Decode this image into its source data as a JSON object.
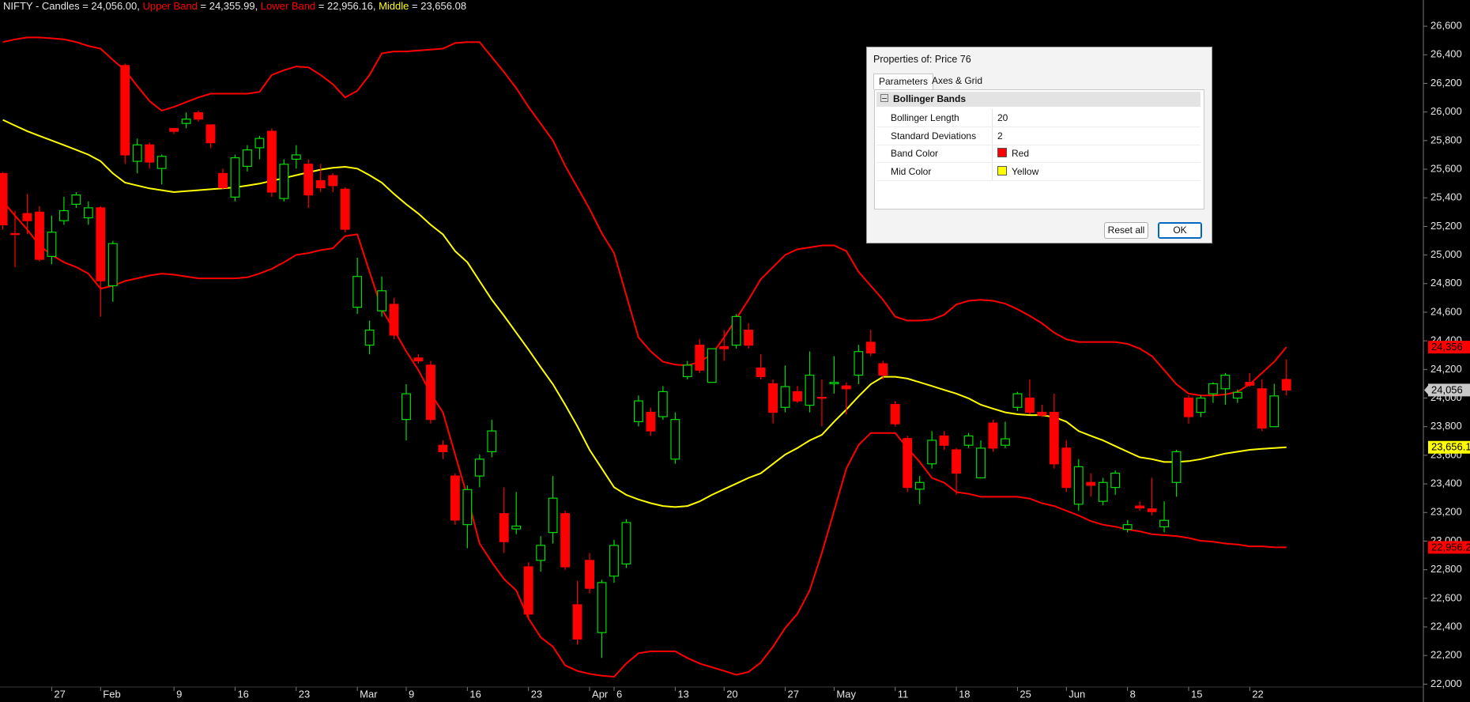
{
  "chart_data": {
    "type": "candlestick",
    "symbol": "NIFTY",
    "symbol_sep": " - ",
    "equals": " = ",
    "comma": ", ",
    "ylim": [
      21980,
      26783
    ],
    "yticks": [
      {
        "value": 22000,
        "label": "22,000"
      },
      {
        "value": 22200,
        "label": "22,200"
      },
      {
        "value": 22400,
        "label": "22,400"
      },
      {
        "value": 22600,
        "label": "22,600"
      },
      {
        "value": 22800,
        "label": "22,800"
      },
      {
        "value": 23000,
        "label": "23,000"
      },
      {
        "value": 23200,
        "label": "23,200"
      },
      {
        "value": 23400,
        "label": "23,400"
      },
      {
        "value": 23600,
        "label": "23,600"
      },
      {
        "value": 23800,
        "label": "23,800"
      },
      {
        "value": 24000,
        "label": "24,000"
      },
      {
        "value": 24200,
        "label": "24,200"
      },
      {
        "value": 24400,
        "label": "24,400"
      },
      {
        "value": 24600,
        "label": "24,600"
      },
      {
        "value": 24800,
        "label": "24,800"
      },
      {
        "value": 25000,
        "label": "25,000"
      },
      {
        "value": 25200,
        "label": "25,200"
      },
      {
        "value": 25400,
        "label": "25,400"
      },
      {
        "value": 25600,
        "label": "25,600"
      },
      {
        "value": 25800,
        "label": "25,800"
      },
      {
        "value": 26000,
        "label": "26,000"
      },
      {
        "value": 26200,
        "label": "26,200"
      },
      {
        "value": 26400,
        "label": "26,400"
      },
      {
        "value": 26600,
        "label": "26,600"
      }
    ],
    "categories": [
      null,
      null,
      null,
      null,
      "27",
      null,
      null,
      null,
      "Feb",
      null,
      null,
      null,
      null,
      null,
      "9",
      null,
      null,
      null,
      null,
      "16",
      null,
      null,
      null,
      null,
      "23",
      null,
      null,
      null,
      null,
      "Mar",
      null,
      null,
      null,
      "9",
      null,
      null,
      null,
      null,
      "16",
      null,
      null,
      null,
      null,
      "23",
      null,
      null,
      null,
      null,
      "Apr",
      null,
      "6",
      null,
      null,
      null,
      null,
      "13",
      null,
      null,
      null,
      "20",
      null,
      null,
      null,
      null,
      "27",
      null,
      null,
      null,
      "May",
      null,
      null,
      null,
      null,
      "11",
      null,
      null,
      null,
      null,
      "18",
      null,
      null,
      null,
      null,
      "25",
      null,
      null,
      null,
      "Jun",
      null,
      null,
      null,
      null,
      "8",
      null,
      null,
      null,
      null,
      "15",
      null,
      null,
      null,
      null,
      "22",
      null,
      null,
      null
    ],
    "candles": {
      "name": "Candles",
      "up_color": "#00dd00",
      "down_color": "#ff0000",
      "hollow_up": true,
      "legend_value": "24,056.00",
      "last_label": "24,056",
      "last_label_color": "#c8c8c8",
      "open": [
        25570,
        25150,
        25290,
        25300,
        24990,
        25240,
        25355,
        25260,
        25330,
        24785,
        26325,
        25655,
        25770,
        25605,
        25885,
        25920,
        25995,
        25910,
        25570,
        25405,
        25620,
        25750,
        25865,
        25395,
        25670,
        25635,
        25520,
        25555,
        25460,
        24635,
        24370,
        24610,
        24655,
        23850,
        24280,
        24230,
        23670,
        23455,
        23115,
        23455,
        23625,
        23192,
        23085,
        22820,
        22865,
        23060,
        23192,
        22555,
        22865,
        22360,
        22755,
        22840,
        23835,
        23900,
        23870,
        23573,
        24150,
        24370,
        24110,
        24360,
        24370,
        24475,
        24210,
        24100,
        23935,
        24045,
        23950,
        24005,
        24100,
        24085,
        24160,
        24390,
        24240,
        23955,
        23717,
        23363,
        23540,
        23735,
        23638,
        23670,
        23442,
        23825,
        23670,
        23935,
        24000,
        23900,
        23900,
        23650,
        23258,
        23410,
        23278,
        23375,
        23082,
        23245,
        23225,
        23100,
        23410,
        24000,
        23900,
        24030,
        24065,
        24000,
        24110,
        24065,
        23800,
        24130
      ],
      "high": [
        25580,
        25309,
        25427,
        25342,
        25276,
        25407,
        25440,
        25375,
        25342,
        25099,
        26338,
        25814,
        25787,
        25702,
        25886,
        25997,
        26010,
        25912,
        25604,
        25702,
        25768,
        25833,
        25886,
        25669,
        25768,
        25669,
        25637,
        25571,
        25473,
        24981,
        24542,
        24850,
        24700,
        24097,
        24306,
        24260,
        23704,
        23474,
        23389,
        23605,
        23848,
        23376,
        23343,
        22852,
        23035,
        23455,
        23212,
        22721,
        22917,
        22730,
        23009,
        23153,
        24018,
        23933,
        24084,
        23900,
        24260,
        24411,
        24346,
        24477,
        24588,
        24523,
        24306,
        24130,
        24228,
        24084,
        24326,
        24130,
        24293,
        24110,
        24372,
        24477,
        24260,
        23979,
        23736,
        23455,
        23769,
        23769,
        23651,
        23756,
        23704,
        23848,
        23835,
        24044,
        24130,
        23953,
        24031,
        23704,
        23573,
        23474,
        23442,
        23494,
        23147,
        23278,
        23442,
        23278,
        23638,
        24020,
        24020,
        24110,
        24175,
        24060,
        24175,
        24130,
        24100,
        24270
      ],
      "low": [
        25178,
        24916,
        25145,
        24955,
        24936,
        25211,
        25329,
        25211,
        24569,
        24673,
        25637,
        25571,
        25604,
        25493,
        25846,
        25886,
        25932,
        25748,
        25460,
        25375,
        25584,
        25669,
        25407,
        25375,
        25604,
        25329,
        25440,
        25440,
        25158,
        24588,
        24306,
        24569,
        24411,
        23704,
        24241,
        23822,
        23573,
        23114,
        22950,
        23376,
        23586,
        22917,
        23048,
        22459,
        22786,
        22983,
        22799,
        22275,
        22635,
        22183,
        22708,
        22812,
        23802,
        23736,
        23848,
        23540,
        24130,
        24175,
        24110,
        24260,
        24346,
        24346,
        24130,
        23822,
        23900,
        23966,
        23900,
        23802,
        24031,
        23887,
        24097,
        24293,
        24130,
        23802,
        23343,
        23258,
        23507,
        23638,
        23324,
        23651,
        23442,
        23625,
        23651,
        23910,
        23887,
        23867,
        23507,
        23343,
        23212,
        23310,
        23250,
        23324,
        23061,
        23212,
        23179,
        23061,
        23310,
        23822,
        23867,
        23966,
        23953,
        23966,
        24080,
        23769,
        23802,
        24018
      ],
      "close": [
        25211,
        25145,
        25240,
        24970,
        25160,
        25310,
        25420,
        25330,
        24820,
        25080,
        25700,
        25770,
        25650,
        25690,
        25865,
        25950,
        25950,
        25785,
        25470,
        25680,
        25735,
        25815,
        25440,
        25635,
        25700,
        25420,
        25470,
        25485,
        25180,
        24850,
        24475,
        24750,
        24440,
        24030,
        24260,
        23850,
        23625,
        23147,
        23360,
        23573,
        23770,
        22996,
        23105,
        22490,
        22970,
        23300,
        22820,
        22315,
        22670,
        22710,
        22970,
        23130,
        23980,
        23770,
        24045,
        23850,
        24230,
        24195,
        24345,
        24345,
        24570,
        24370,
        24150,
        23900,
        24080,
        23980,
        24160,
        24000,
        24110,
        24065,
        24325,
        24315,
        24160,
        23820,
        23375,
        23410,
        23705,
        23670,
        23475,
        23735,
        23650,
        23650,
        23715,
        24030,
        23900,
        23880,
        23540,
        23375,
        23520,
        23390,
        23410,
        23475,
        23115,
        23232,
        23206,
        23145,
        23625,
        23870,
        24000,
        24100,
        24160,
        24040,
        24090,
        23790,
        24015,
        24056
      ]
    },
    "series": [
      {
        "name": "Upper Band",
        "color": "#ff0000",
        "legend_value": "24,355.99",
        "last_label": "24,356",
        "values": [
          26489,
          26508,
          26521,
          26521,
          26515,
          26508,
          26489,
          26462,
          26443,
          26364,
          26292,
          26181,
          26076,
          26010,
          26036,
          26069,
          26102,
          26128,
          26128,
          26128,
          26128,
          26141,
          26259,
          26292,
          26318,
          26312,
          26259,
          26194,
          26102,
          26148,
          26259,
          26410,
          26423,
          26423,
          26430,
          26436,
          26443,
          26482,
          26489,
          26489,
          26384,
          26279,
          26167,
          26036,
          25918,
          25801,
          25624,
          25473,
          25322,
          25152,
          25014,
          24719,
          24424,
          24326,
          24254,
          24234,
          24228,
          24254,
          24306,
          24424,
          24556,
          24687,
          24831,
          24916,
          25001,
          25040,
          25053,
          25067,
          25067,
          25027,
          24883,
          24785,
          24687,
          24569,
          24542,
          24542,
          24549,
          24582,
          24654,
          24680,
          24687,
          24680,
          24660,
          24621,
          24575,
          24523,
          24457,
          24411,
          24392,
          24392,
          24392,
          24392,
          24379,
          24346,
          24293,
          24195,
          24097,
          24031,
          24018,
          24018,
          24025,
          24044,
          24097,
          24175,
          24254,
          24355.99
        ]
      },
      {
        "name": "Lower Band",
        "color": "#ff0000",
        "legend_value": "22,956.16",
        "last_label": "22,956.2",
        "values": [
          25375,
          25276,
          25178,
          25067,
          25001,
          24949,
          24916,
          24870,
          24765,
          24785,
          24818,
          24837,
          24857,
          24870,
          24863,
          24850,
          24837,
          24837,
          24837,
          24837,
          24844,
          24870,
          24903,
          24949,
          25001,
          25014,
          25034,
          25047,
          25132,
          25145,
          24883,
          24621,
          24477,
          24326,
          24195,
          24031,
          23900,
          23605,
          23310,
          22983,
          22852,
          22734,
          22655,
          22459,
          22327,
          22262,
          22131,
          22092,
          22072,
          22059,
          22052,
          22144,
          22216,
          22229,
          22229,
          22229,
          22183,
          22144,
          22118,
          22092,
          22065,
          22085,
          22151,
          22262,
          22393,
          22491,
          22655,
          22917,
          23212,
          23507,
          23671,
          23756,
          23756,
          23756,
          23651,
          23553,
          23442,
          23409,
          23343,
          23330,
          23310,
          23310,
          23310,
          23310,
          23297,
          23265,
          23245,
          23212,
          23179,
          23140,
          23114,
          23101,
          23081,
          23068,
          23048,
          23042,
          23035,
          23022,
          23002,
          22996,
          22983,
          22976,
          22963,
          22963,
          22957,
          22956.16
        ]
      },
      {
        "name": "Middle",
        "color": "#ffff00",
        "legend_value": "23,656.08",
        "last_label": "23,656.1",
        "values": [
          25945,
          25905,
          25866,
          25833,
          25801,
          25768,
          25735,
          25702,
          25656,
          25571,
          25506,
          25486,
          25466,
          25453,
          25440,
          25447,
          25453,
          25460,
          25466,
          25473,
          25486,
          25499,
          25519,
          25538,
          25558,
          25578,
          25597,
          25610,
          25617,
          25604,
          25558,
          25506,
          25427,
          25355,
          25289,
          25211,
          25145,
          25027,
          24949,
          24818,
          24687,
          24575,
          24457,
          24339,
          24215,
          24097,
          23953,
          23802,
          23638,
          23507,
          23376,
          23323,
          23291,
          23265,
          23245,
          23238,
          23245,
          23278,
          23323,
          23363,
          23402,
          23442,
          23474,
          23540,
          23605,
          23651,
          23704,
          23743,
          23835,
          23920,
          24012,
          24097,
          24149,
          24149,
          24136,
          24110,
          24084,
          24057,
          24031,
          23998,
          23953,
          23926,
          23900,
          23887,
          23881,
          23881,
          23867,
          23835,
          23769,
          23736,
          23704,
          23664,
          23625,
          23586,
          23573,
          23553,
          23553,
          23559,
          23573,
          23592,
          23612,
          23625,
          23638,
          23645,
          23651,
          23656.08
        ]
      }
    ]
  },
  "dialog": {
    "title": "Properties of: Price 76",
    "tabs": [
      "Parameters",
      "Axes & Grid"
    ],
    "section": "Bollinger Bands",
    "rows": [
      {
        "label": "Bollinger Length",
        "value": 20
      },
      {
        "label": "Standard Deviations",
        "value": 2
      },
      {
        "label": "Band Color",
        "value": "Red",
        "swatch": "#ff0000"
      },
      {
        "label": "Mid Color",
        "value": "Yellow",
        "swatch": "#ffff00"
      }
    ],
    "buttons": [
      "Reset all",
      "OK"
    ]
  }
}
